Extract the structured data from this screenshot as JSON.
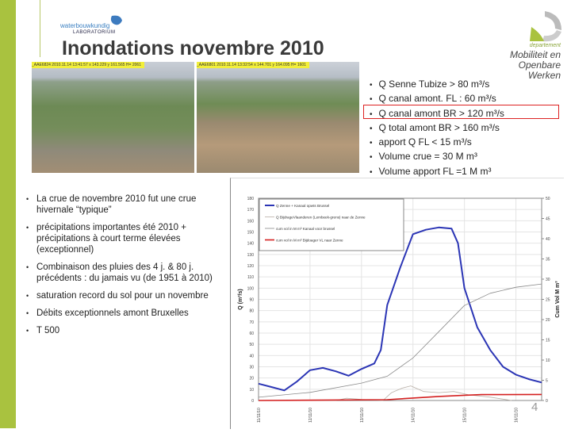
{
  "slide": {
    "title": "Inondations novembre 2010",
    "page_number": "4",
    "accent_color": "#a9c23f",
    "logo_left": {
      "line1": "waterbouwkundig",
      "line2": "LABORATORIUM"
    },
    "logo_right": {
      "line1": "departement",
      "line2": "Mobiliteit en",
      "line3": "Openbare Werken"
    },
    "photos": [
      {
        "caption": "_AAE6824  2010.11.14 13:41:57   x 143.229 y 161.565   H= 2061"
      },
      {
        "caption": "_AAE6801  2010.11.14 13:32:54   x 144.701 y 164.095   H= 1601"
      }
    ],
    "right_bullets": [
      "Q Senne Tubize > 80 m³/s",
      "Q canal amont. FL : 60 m³/s",
      "Q canal amont  BR > 120 m³/s",
      "Q total amont BR > 160 m³/s",
      "apport Q FL < 15 m³/s",
      "Volume crue = 30 M m³",
      "Volume apport FL =1 M m³"
    ],
    "highlighted_bullet_index": 2,
    "left_bullets": [
      "La crue de novembre 2010 fut une crue hivernale “typique”",
      "précipitations importantes été 2010 + précipitations à court terme élevées (exceptionnel)",
      "Combinaison des pluies des 4 j. & 80 j. précédents : du jamais vu (de 1951 à 2010)",
      "saturation record du sol pour un novembre",
      "Débits exceptionnels amont  Bruxelles",
      "T 500"
    ]
  },
  "chart_data": {
    "type": "line",
    "ylabel": "Q (m³/s)",
    "y2label": "Cum Vol M m³",
    "ylim": [
      0,
      180
    ],
    "y2lim": [
      0,
      50
    ],
    "yticks": [
      "0",
      "10",
      "20",
      "30",
      "40",
      "50",
      "60",
      "70",
      "80",
      "90",
      "100",
      "110",
      "120",
      "130",
      "140",
      "150",
      "160",
      "170",
      "180"
    ],
    "y2ticks": [
      "0",
      "5",
      "10",
      "15",
      "20",
      "25",
      "30",
      "35",
      "40",
      "45",
      "50"
    ],
    "xticks": [
      "11/11/10",
      "12/11/10",
      "13/11/10",
      "14/11/10",
      "15/11/10",
      "16/11/10"
    ],
    "xlim": [
      "2010-11-11T00:00",
      "2010-11-16T12:00"
    ],
    "grid": true,
    "legend_position": "top-left",
    "series": [
      {
        "name": "Q Zenne + Kanaal opwts Brussel",
        "axis": "left",
        "color": "#2b35b5",
        "x": [
          "2010-11-11T00:00",
          "2010-11-11T06:00",
          "2010-11-11T12:00",
          "2010-11-11T18:00",
          "2010-11-12T00:00",
          "2010-11-12T06:00",
          "2010-11-12T12:00",
          "2010-11-12T18:00",
          "2010-11-13T00:00",
          "2010-11-13T06:00",
          "2010-11-13T09:00",
          "2010-11-13T12:00",
          "2010-11-13T18:00",
          "2010-11-14T00:00",
          "2010-11-14T06:00",
          "2010-11-14T12:00",
          "2010-11-14T18:00",
          "2010-11-14T21:00",
          "2010-11-15T00:00",
          "2010-11-15T06:00",
          "2010-11-15T12:00",
          "2010-11-15T18:00",
          "2010-11-16T00:00",
          "2010-11-16T06:00",
          "2010-11-16T12:00"
        ],
        "y": [
          15,
          12,
          9,
          17,
          27,
          29,
          26,
          22,
          28,
          33,
          45,
          85,
          118,
          148,
          152,
          154,
          153,
          140,
          100,
          65,
          45,
          30,
          23,
          19,
          16
        ]
      },
      {
        "name": "Q BijdrageVlaanderen (Lembeek-grens)  naar de Zenne",
        "axis": "left",
        "color": "#b9b0a8",
        "x": [
          "2010-11-11T00:00",
          "2010-11-12T12:00",
          "2010-11-12T17:00",
          "2010-11-13T00:00",
          "2010-11-13T10:00",
          "2010-11-13T14:00",
          "2010-11-13T19:00",
          "2010-11-13T23:00",
          "2010-11-14T05:00",
          "2010-11-14T12:00",
          "2010-11-14T19:00",
          "2010-11-15T02:00",
          "2010-11-15T12:00",
          "2010-11-15T22:00"
        ],
        "y": [
          0,
          0,
          2,
          1,
          0,
          7,
          11,
          13,
          8,
          7,
          8,
          5,
          3,
          0
        ]
      },
      {
        "name": "cum vol in M m³ Kanaal voor brussel",
        "axis": "right",
        "color": "#8a8a8a",
        "x": [
          "2010-11-11T00:00",
          "2010-11-12T00:00",
          "2010-11-13T00:00",
          "2010-11-13T12:00",
          "2010-11-14T00:00",
          "2010-11-14T12:00",
          "2010-11-15T00:00",
          "2010-11-15T12:00",
          "2010-11-16T00:00",
          "2010-11-16T12:00"
        ],
        "y": [
          0.8,
          2,
          4.3,
          6,
          10.5,
          17,
          23.5,
          26.5,
          28,
          28.8
        ]
      },
      {
        "name": "cum vol in M m³ Bijdoager VL naar Zenne",
        "axis": "right",
        "color": "#d42020",
        "x": [
          "2010-11-11T00:00",
          "2010-11-13T12:00",
          "2010-11-14T00:00",
          "2010-11-14T12:00",
          "2010-11-15T00:00",
          "2010-11-15T08:00",
          "2010-11-16T12:00"
        ],
        "y": [
          0,
          0.2,
          0.6,
          1.0,
          1.3,
          1.45,
          1.5
        ]
      }
    ]
  }
}
